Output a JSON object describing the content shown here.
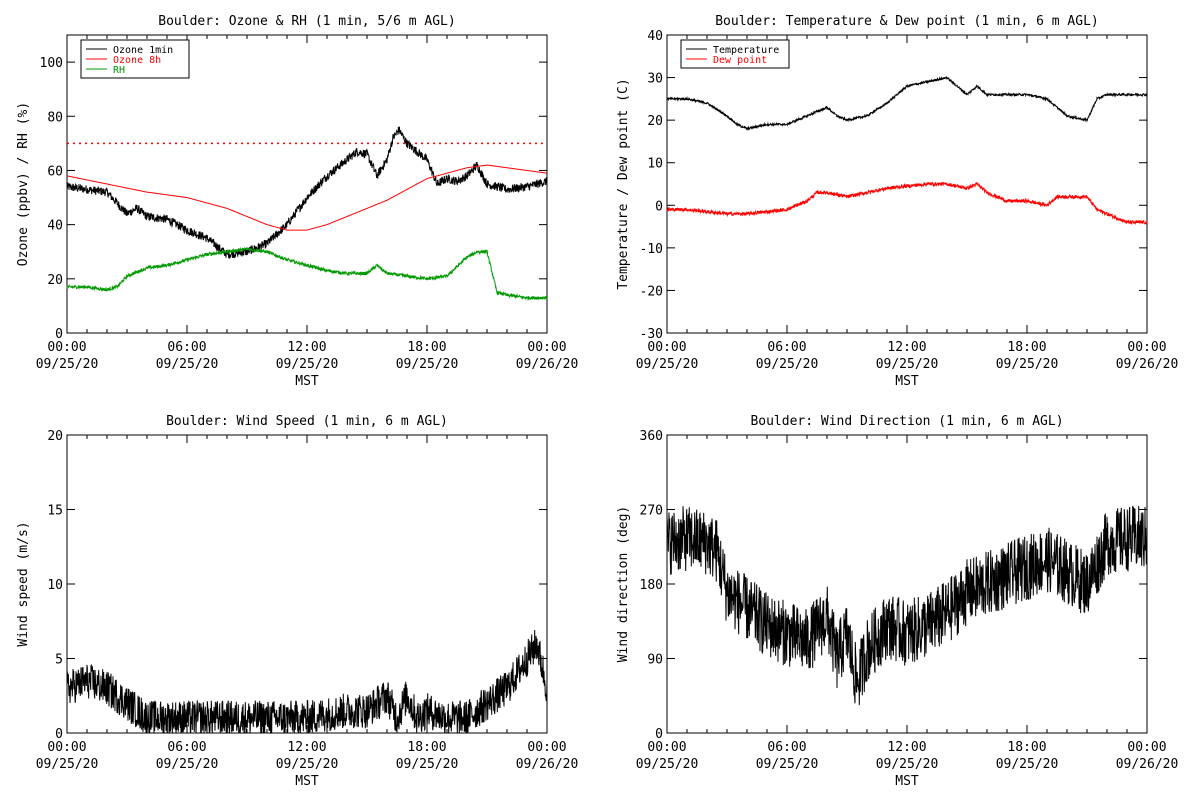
{
  "time_ticks": {
    "times": [
      "00:00",
      "06:00",
      "12:00",
      "18:00",
      "00:00"
    ],
    "dates": [
      "09/25/20",
      "09/25/20",
      "09/25/20",
      "09/25/20",
      "09/26/20"
    ]
  },
  "chart_data": [
    {
      "type": "line",
      "title": "Boulder: Ozone & RH (1 min, 5/6 m AGL)",
      "xlabel": "MST",
      "ylabel": "Ozone (ppbv) / RH (%)",
      "xlim": [
        "09/25/20 00:00",
        "09/26/20 00:00"
      ],
      "ylim": [
        0,
        110
      ],
      "yticks": [
        0,
        20,
        40,
        60,
        80,
        100
      ],
      "grid": false,
      "legend": "top-left",
      "reference_lines": [
        {
          "y": 70,
          "color": "#ff0000",
          "style": "dotted"
        }
      ],
      "series": [
        {
          "name": "Ozone 1min",
          "color": "#000000",
          "noise": 1.6,
          "x": [
            0,
            1,
            2,
            2.5,
            3,
            3.5,
            4,
            5,
            6,
            7,
            7.5,
            8,
            9,
            10,
            11,
            12,
            13,
            14,
            14.5,
            15,
            15.5,
            16,
            16.3,
            16.6,
            17,
            18,
            18.5,
            19,
            19.5,
            20,
            20.5,
            21,
            22,
            23,
            24
          ],
          "y": [
            54,
            53,
            52,
            48,
            44,
            46,
            43,
            42,
            38,
            35,
            32,
            29,
            30,
            33,
            40,
            50,
            58,
            64,
            67,
            66,
            58,
            64,
            72,
            75,
            70,
            64,
            55,
            57,
            56,
            58,
            62,
            55,
            53,
            54,
            56
          ]
        },
        {
          "name": "Ozone 8h",
          "color": "#ff0000",
          "noise": 0,
          "x": [
            0,
            2,
            4,
            6,
            8,
            10,
            11,
            12,
            13,
            14,
            16,
            18,
            20,
            21,
            22,
            24
          ],
          "y": [
            58,
            55,
            52,
            50,
            46,
            40,
            38,
            38,
            40,
            43,
            49,
            57,
            61,
            62,
            61,
            59
          ]
        },
        {
          "name": "RH",
          "color": "#009900",
          "noise": 0.6,
          "x": [
            0,
            1,
            2,
            2.5,
            3,
            4,
            5,
            6,
            7,
            8,
            9,
            10,
            11,
            12,
            13,
            14,
            15,
            15.5,
            16,
            17,
            18,
            19,
            20,
            20.5,
            21,
            21.5,
            22,
            23,
            24
          ],
          "y": [
            17,
            17,
            16,
            17,
            21,
            24,
            25,
            27,
            29,
            30,
            31,
            30,
            27,
            25,
            23,
            22,
            22,
            25,
            22,
            21,
            20,
            21,
            28,
            30,
            30,
            15,
            14,
            13,
            13
          ]
        }
      ]
    },
    {
      "type": "line",
      "title": "Boulder: Temperature & Dew point (1 min, 6 m AGL)",
      "xlabel": "MST",
      "ylabel": "Temperature / Dew point (C)",
      "xlim": [
        "09/25/20 00:00",
        "09/26/20 00:00"
      ],
      "ylim": [
        -30,
        40
      ],
      "yticks": [
        -30,
        -20,
        -10,
        0,
        10,
        20,
        30,
        40
      ],
      "grid": false,
      "legend": "top-left",
      "series": [
        {
          "name": "Temperature",
          "color": "#000000",
          "noise": 0.25,
          "x": [
            0,
            1,
            2,
            3,
            3.5,
            4,
            5,
            6,
            7,
            8,
            8.5,
            9,
            10,
            11,
            12,
            13,
            14,
            15,
            15.5,
            16,
            17,
            18,
            19,
            20,
            21,
            21.5,
            22,
            23,
            24
          ],
          "y": [
            25,
            25,
            24,
            21,
            19,
            18,
            19,
            19,
            21,
            23,
            21,
            20,
            21,
            24,
            28,
            29,
            30,
            26,
            28,
            26,
            26,
            26,
            25,
            21,
            20,
            25,
            26,
            26,
            26
          ]
        },
        {
          "name": "Dew point",
          "color": "#ff0000",
          "noise": 0.4,
          "x": [
            0,
            1,
            2,
            3,
            4,
            5,
            6,
            7,
            7.5,
            8,
            9,
            10,
            11,
            12,
            13,
            14,
            15,
            15.5,
            16,
            17,
            18,
            19,
            19.5,
            20,
            21,
            21.5,
            22,
            23,
            24
          ],
          "y": [
            -1,
            -1,
            -1.5,
            -2,
            -2,
            -1.5,
            -1,
            1,
            3,
            3,
            2,
            3,
            4,
            4.5,
            5,
            5,
            4,
            5,
            3,
            1,
            1,
            0,
            2,
            2,
            2,
            -1,
            -2,
            -4,
            -4
          ]
        }
      ]
    },
    {
      "type": "line",
      "title": "Boulder: Wind Speed (1 min, 6 m AGL)",
      "xlabel": "MST",
      "ylabel": "Wind speed (m/s)",
      "xlim": [
        "09/25/20 00:00",
        "09/26/20 00:00"
      ],
      "ylim": [
        0,
        20
      ],
      "yticks": [
        0,
        5,
        10,
        15,
        20
      ],
      "grid": false,
      "series": [
        {
          "color": "#000000",
          "noise": 1.2,
          "x": [
            0,
            1,
            2,
            3,
            4,
            5,
            6,
            8,
            10,
            12,
            14,
            15,
            16,
            16.5,
            17,
            17.5,
            18,
            19,
            20,
            21,
            22,
            23,
            23.5,
            24
          ],
          "y": [
            3,
            3.5,
            3,
            2,
            1,
            1,
            1,
            1,
            1,
            1,
            1.5,
            1.5,
            2.5,
            1,
            2.5,
            1,
            1.5,
            1,
            1,
            2,
            3,
            5,
            6,
            3
          ]
        }
      ]
    },
    {
      "type": "line",
      "title": "Boulder: Wind Direction (1 min, 6 m AGL)",
      "xlabel": "MST",
      "ylabel": "Wind direction (deg)",
      "xlim": [
        "09/25/20 00:00",
        "09/26/20 00:00"
      ],
      "ylim": [
        0,
        360
      ],
      "yticks": [
        0,
        90,
        180,
        270,
        360
      ],
      "grid": false,
      "series": [
        {
          "color": "#000000",
          "noise": 40,
          "x": [
            0,
            1,
            2,
            2.5,
            3,
            4,
            5,
            6,
            7,
            8,
            8.5,
            9,
            9.5,
            10,
            11,
            12,
            13,
            14,
            15,
            16,
            17,
            18,
            19,
            20,
            21,
            22,
            23,
            24
          ],
          "y": [
            230,
            235,
            230,
            220,
            170,
            150,
            130,
            120,
            110,
            140,
            90,
            120,
            60,
            100,
            130,
            120,
            130,
            145,
            170,
            180,
            190,
            200,
            210,
            195,
            180,
            230,
            235,
            235
          ]
        }
      ]
    }
  ]
}
